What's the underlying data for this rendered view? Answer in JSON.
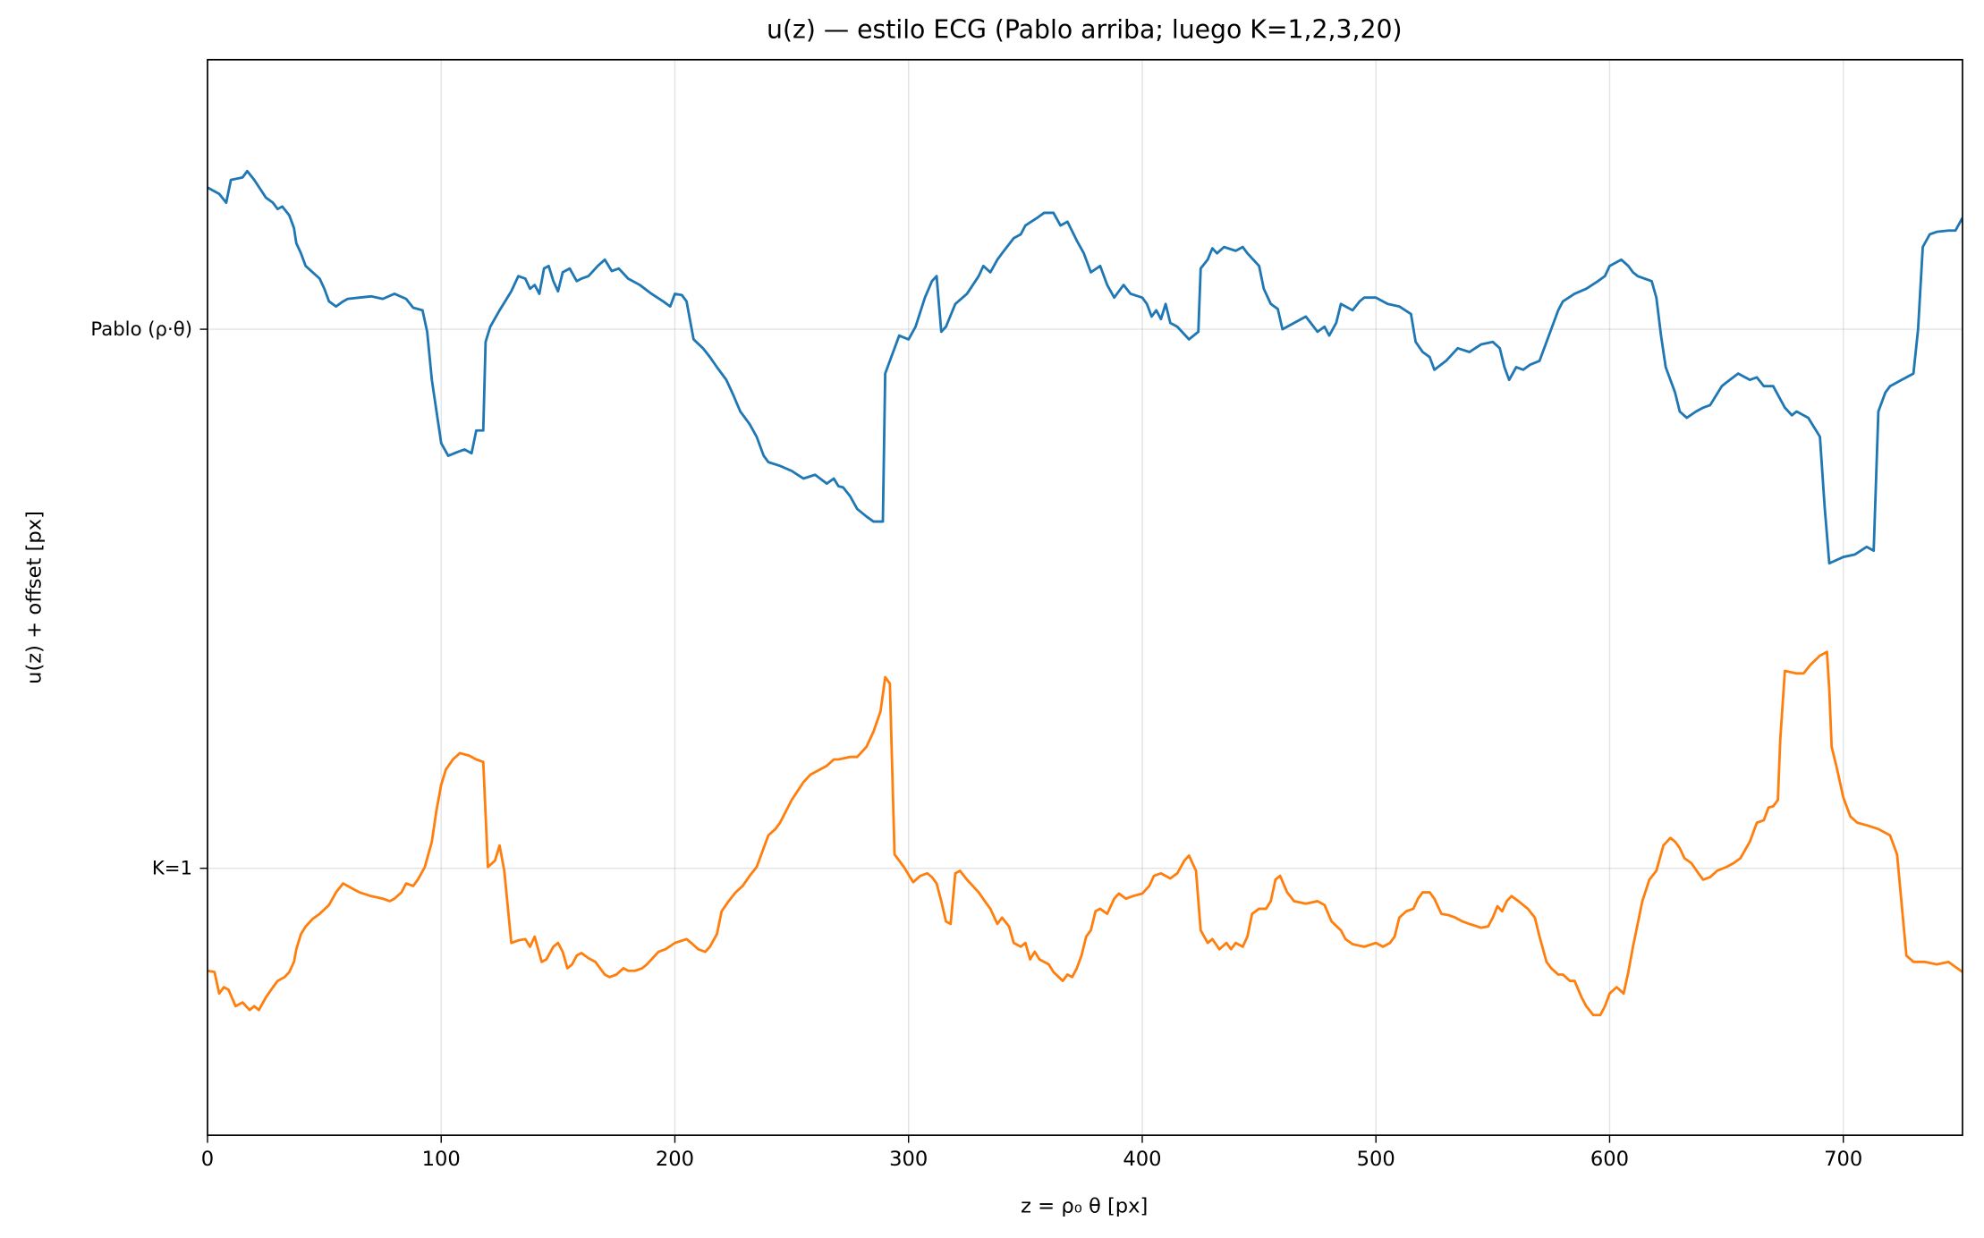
{
  "chart_data": {
    "type": "line",
    "title": "u(z) — estilo ECG (Pablo arriba; luego K=1,2,3,20)",
    "x_label": "z = ρ₀ θ  [px]",
    "y_label": "u(z) + offset [px]",
    "xlim": [
      0,
      751
    ],
    "ylim": [
      -211,
      639
    ],
    "xticks": [
      0,
      100,
      200,
      300,
      400,
      500,
      600,
      700
    ],
    "yticks": [
      {
        "value": 0,
        "label": "K=1"
      },
      {
        "value": 426,
        "label": "Pablo (ρ·θ)"
      }
    ],
    "grid": true,
    "series": [
      {
        "name": "Pablo (ρ·θ)",
        "color": "#1f77b4",
        "x": [
          0,
          5,
          8,
          10,
          15,
          17,
          20,
          25,
          28,
          30,
          32,
          35,
          37,
          38,
          40,
          42,
          45,
          48,
          50,
          52,
          55,
          58,
          60,
          65,
          70,
          75,
          80,
          85,
          88,
          92,
          94,
          96,
          98,
          100,
          103,
          107,
          110,
          113,
          115,
          118,
          119,
          121,
          125,
          130,
          133,
          136,
          138,
          140,
          142,
          144,
          146,
          148,
          150,
          152,
          155,
          158,
          160,
          163,
          167,
          170,
          173,
          176,
          180,
          185,
          190,
          195,
          198,
          200,
          203,
          205,
          208,
          212,
          215,
          218,
          222,
          225,
          228,
          232,
          235,
          238,
          240,
          245,
          250,
          255,
          260,
          265,
          268,
          270,
          272,
          275,
          278,
          282,
          285,
          289,
          290,
          293,
          296,
          300,
          303,
          307,
          310,
          312,
          314,
          316,
          320,
          325,
          330,
          332,
          335,
          338,
          340,
          345,
          348,
          350,
          355,
          358,
          362,
          365,
          368,
          372,
          375,
          378,
          382,
          385,
          388,
          392,
          395,
          400,
          402,
          404,
          406,
          408,
          410,
          412,
          415,
          420,
          424,
          425,
          428,
          430,
          432,
          435,
          440,
          443,
          445,
          450,
          452,
          455,
          458,
          460,
          465,
          470,
          475,
          478,
          480,
          483,
          485,
          490,
          493,
          495,
          500,
          505,
          510,
          515,
          517,
          520,
          523,
          525,
          530,
          535,
          540,
          545,
          550,
          553,
          555,
          557,
          560,
          563,
          566,
          570,
          572,
          575,
          578,
          580,
          585,
          590,
          595,
          598,
          600,
          605,
          608,
          610,
          612,
          615,
          618,
          620,
          622,
          624,
          626,
          628,
          630,
          633,
          637,
          640,
          643,
          648,
          650,
          655,
          660,
          663,
          666,
          670,
          675,
          678,
          680,
          685,
          690,
          692,
          694,
          700,
          705,
          710,
          713,
          715,
          718,
          720,
          725,
          730,
          732,
          734,
          737,
          740,
          745,
          748,
          751
        ],
        "values": [
          538,
          533,
          526,
          544,
          546,
          551,
          544,
          530,
          526,
          521,
          523,
          516,
          506,
          494,
          486,
          476,
          471,
          466,
          458,
          448,
          444,
          448,
          450,
          451,
          452,
          450,
          454,
          450,
          443,
          441,
          424,
          386,
          361,
          336,
          326,
          329,
          331,
          328,
          346,
          346,
          416,
          428,
          441,
          456,
          468,
          466,
          458,
          461,
          454,
          474,
          476,
          464,
          456,
          471,
          474,
          464,
          466,
          468,
          476,
          481,
          472,
          474,
          466,
          461,
          454,
          448,
          444,
          454,
          453,
          448,
          418,
          411,
          404,
          396,
          386,
          374,
          361,
          351,
          341,
          326,
          321,
          318,
          314,
          308,
          311,
          304,
          308,
          302,
          301,
          294,
          284,
          278,
          274,
          274,
          391,
          406,
          421,
          418,
          428,
          451,
          464,
          468,
          424,
          428,
          446,
          454,
          468,
          476,
          471,
          481,
          486,
          498,
          501,
          508,
          514,
          518,
          518,
          508,
          511,
          496,
          486,
          471,
          476,
          461,
          451,
          461,
          454,
          451,
          446,
          436,
          441,
          434,
          446,
          431,
          428,
          418,
          424,
          474,
          481,
          490,
          486,
          491,
          488,
          491,
          486,
          476,
          458,
          446,
          442,
          426,
          431,
          436,
          424,
          428,
          421,
          431,
          446,
          441,
          448,
          451,
          451,
          446,
          444,
          438,
          416,
          408,
          404,
          394,
          401,
          411,
          408,
          414,
          416,
          411,
          396,
          386,
          396,
          394,
          398,
          401,
          411,
          426,
          441,
          448,
          454,
          458,
          464,
          468,
          476,
          481,
          476,
          471,
          468,
          466,
          464,
          451,
          421,
          396,
          386,
          376,
          361,
          356,
          361,
          364,
          366,
          381,
          384,
          391,
          386,
          388,
          381,
          381,
          364,
          358,
          361,
          356,
          341,
          286,
          241,
          246,
          248,
          254,
          251,
          361,
          376,
          381,
          386,
          391,
          426,
          491,
          501,
          503,
          504,
          504,
          514
        ]
      },
      {
        "name": "K=1",
        "color": "#ff7f0e",
        "x": [
          0,
          3,
          5,
          7,
          9,
          12,
          15,
          18,
          20,
          22,
          25,
          28,
          30,
          33,
          35,
          37,
          38,
          40,
          42,
          45,
          48,
          52,
          55,
          58,
          60,
          63,
          65,
          70,
          75,
          78,
          80,
          83,
          85,
          88,
          90,
          93,
          96,
          98,
          100,
          102,
          105,
          108,
          112,
          115,
          118,
          120,
          123,
          125,
          127,
          130,
          133,
          136,
          138,
          140,
          143,
          145,
          148,
          150,
          152,
          154,
          156,
          158,
          160,
          163,
          166,
          168,
          170,
          172,
          175,
          178,
          180,
          183,
          186,
          188,
          190,
          193,
          196,
          200,
          205,
          207,
          210,
          213,
          215,
          218,
          220,
          223,
          226,
          229,
          232,
          235,
          238,
          240,
          243,
          245,
          250,
          255,
          258,
          262,
          265,
          268,
          270,
          275,
          278,
          282,
          285,
          288,
          290,
          292,
          294,
          298,
          302,
          305,
          308,
          310,
          312,
          314,
          316,
          318,
          320,
          322,
          325,
          330,
          333,
          335,
          338,
          340,
          343,
          345,
          348,
          350,
          352,
          354,
          356,
          360,
          362,
          366,
          368,
          370,
          372,
          374,
          376,
          378,
          380,
          382,
          385,
          388,
          390,
          393,
          396,
          400,
          403,
          405,
          408,
          412,
          415,
          418,
          420,
          423,
          425,
          428,
          430,
          433,
          436,
          438,
          440,
          443,
          445,
          447,
          450,
          453,
          455,
          457,
          459,
          462,
          465,
          470,
          475,
          478,
          481,
          485,
          487,
          490,
          495,
          500,
          503,
          506,
          508,
          510,
          513,
          516,
          518,
          520,
          523,
          525,
          528,
          531,
          534,
          537,
          540,
          545,
          548,
          550,
          552,
          554,
          556,
          558,
          561,
          565,
          568,
          570,
          573,
          575,
          578,
          580,
          583,
          585,
          588,
          590,
          593,
          596,
          598,
          600,
          603,
          606,
          608,
          610,
          612,
          614,
          617,
          620,
          623,
          626,
          628,
          630,
          632,
          635,
          638,
          640,
          643,
          646,
          650,
          653,
          656,
          660,
          663,
          666,
          668,
          670,
          672,
          673,
          675,
          680,
          683,
          686,
          690,
          693,
          694,
          695,
          697,
          700,
          703,
          706,
          710,
          715,
          720,
          723,
          725,
          727,
          730,
          735,
          740,
          745,
          751
        ],
        "values": [
          -81,
          -82,
          -99,
          -94,
          -96,
          -109,
          -106,
          -112,
          -109,
          -112,
          -102,
          -94,
          -89,
          -86,
          -82,
          -74,
          -64,
          -52,
          -46,
          -40,
          -36,
          -29,
          -19,
          -12,
          -14,
          -17,
          -19,
          -22,
          -24,
          -26,
          -24,
          -19,
          -12,
          -14,
          -9,
          1,
          21,
          46,
          66,
          78,
          86,
          91,
          89,
          86,
          84,
          1,
          6,
          18,
          -2,
          -59,
          -57,
          -56,
          -62,
          -54,
          -74,
          -72,
          -62,
          -59,
          -66,
          -79,
          -76,
          -69,
          -67,
          -71,
          -74,
          -79,
          -84,
          -86,
          -84,
          -79,
          -81,
          -81,
          -79,
          -76,
          -72,
          -66,
          -64,
          -59,
          -56,
          -59,
          -64,
          -66,
          -62,
          -52,
          -34,
          -26,
          -19,
          -14,
          -6,
          1,
          16,
          26,
          31,
          36,
          54,
          68,
          74,
          78,
          81,
          86,
          86,
          88,
          88,
          96,
          108,
          124,
          151,
          146,
          11,
          1,
          -11,
          -6,
          -4,
          -7,
          -12,
          -26,
          -42,
          -44,
          -4,
          -2,
          -9,
          -19,
          -27,
          -32,
          -44,
          -39,
          -46,
          -59,
          -62,
          -59,
          -72,
          -66,
          -72,
          -76,
          -82,
          -89,
          -84,
          -86,
          -79,
          -69,
          -54,
          -49,
          -34,
          -32,
          -36,
          -24,
          -20,
          -24,
          -22,
          -20,
          -14,
          -6,
          -4,
          -8,
          -4,
          6,
          10,
          -2,
          -49,
          -59,
          -56,
          -64,
          -59,
          -64,
          -59,
          -62,
          -54,
          -36,
          -32,
          -32,
          -26,
          -9,
          -6,
          -19,
          -26,
          -28,
          -26,
          -29,
          -42,
          -49,
          -56,
          -60,
          -62,
          -59,
          -62,
          -59,
          -54,
          -39,
          -34,
          -32,
          -24,
          -19,
          -19,
          -24,
          -36,
          -37,
          -39,
          -42,
          -44,
          -47,
          -46,
          -39,
          -30,
          -34,
          -26,
          -22,
          -26,
          -32,
          -39,
          -54,
          -74,
          -79,
          -84,
          -84,
          -89,
          -89,
          -102,
          -109,
          -116,
          -116,
          -109,
          -99,
          -94,
          -99,
          -82,
          -62,
          -44,
          -26,
          -9,
          -2,
          18,
          24,
          21,
          16,
          8,
          4,
          -4,
          -9,
          -7,
          -2,
          1,
          4,
          8,
          21,
          36,
          38,
          48,
          49,
          54,
          101,
          156,
          154,
          154,
          161,
          168,
          171,
          141,
          96,
          81,
          56,
          41,
          36,
          34,
          31,
          26,
          11,
          -29,
          -69,
          -74,
          -74,
          -76,
          -74,
          -82
        ]
      }
    ]
  }
}
